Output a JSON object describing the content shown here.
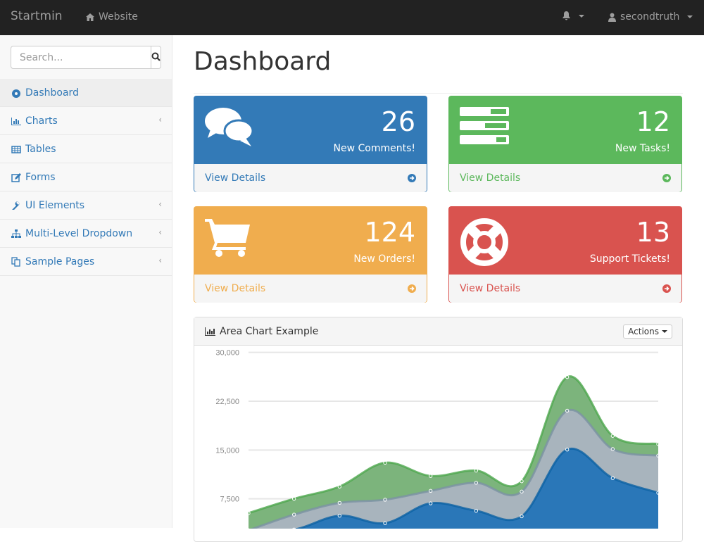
{
  "navbar": {
    "brand": "Startmin",
    "website": "Website",
    "user": "secondtruth",
    "icons": [
      "home-icon",
      "bell-icon",
      "user-icon"
    ]
  },
  "sidebar": {
    "search_placeholder": "Search...",
    "items": [
      {
        "label": "Dashboard",
        "icon": "dashboard-icon",
        "active": true,
        "has_children": false
      },
      {
        "label": "Charts",
        "icon": "bar-chart-icon",
        "has_children": true
      },
      {
        "label": "Tables",
        "icon": "table-icon",
        "has_children": false
      },
      {
        "label": "Forms",
        "icon": "edit-icon",
        "has_children": false
      },
      {
        "label": "UI Elements",
        "icon": "wrench-icon",
        "has_children": true
      },
      {
        "label": "Multi-Level Dropdown",
        "icon": "sitemap-icon",
        "has_children": true
      },
      {
        "label": "Sample Pages",
        "icon": "files-icon",
        "has_children": true
      }
    ]
  },
  "page": {
    "title": "Dashboard"
  },
  "cards": [
    {
      "count": "26",
      "label": "New Comments!",
      "link": "View Details",
      "color": "#337ab7",
      "icon": "comments-icon"
    },
    {
      "count": "12",
      "label": "New Tasks!",
      "link": "View Details",
      "color": "#5cb85c",
      "icon": "tasks-icon"
    },
    {
      "count": "124",
      "label": "New Orders!",
      "link": "View Details",
      "color": "#f0ad4e",
      "icon": "shopping-cart-icon"
    },
    {
      "count": "13",
      "label": "Support Tickets!",
      "link": "View Details",
      "color": "#d9534f",
      "icon": "life-ring-icon"
    }
  ],
  "chart_panel": {
    "title": "Area Chart Example",
    "actions": "Actions"
  },
  "chart_data": {
    "type": "area",
    "stacked": true,
    "grid": true,
    "y_ticks": [
      "7,500",
      "15,000",
      "22,500",
      "30,000"
    ],
    "ylim": [
      0,
      30000
    ],
    "colors": [
      "#0b62a4",
      "#7a92a3",
      "#4da74d"
    ],
    "series": [
      {
        "values": [
          2666,
          2778,
          4912,
          3767,
          6810,
          5670,
          4820,
          15073,
          10687,
          8432
        ]
      },
      {
        "values": [
          0,
          2294,
          1969,
          3597,
          1914,
          4293,
          3795,
          5967,
          4460,
          5713
        ]
      },
      {
        "values": [
          2647,
          2441,
          2501,
          5689,
          2293,
          1881,
          1588,
          5175,
          2028,
          1791
        ]
      }
    ]
  }
}
